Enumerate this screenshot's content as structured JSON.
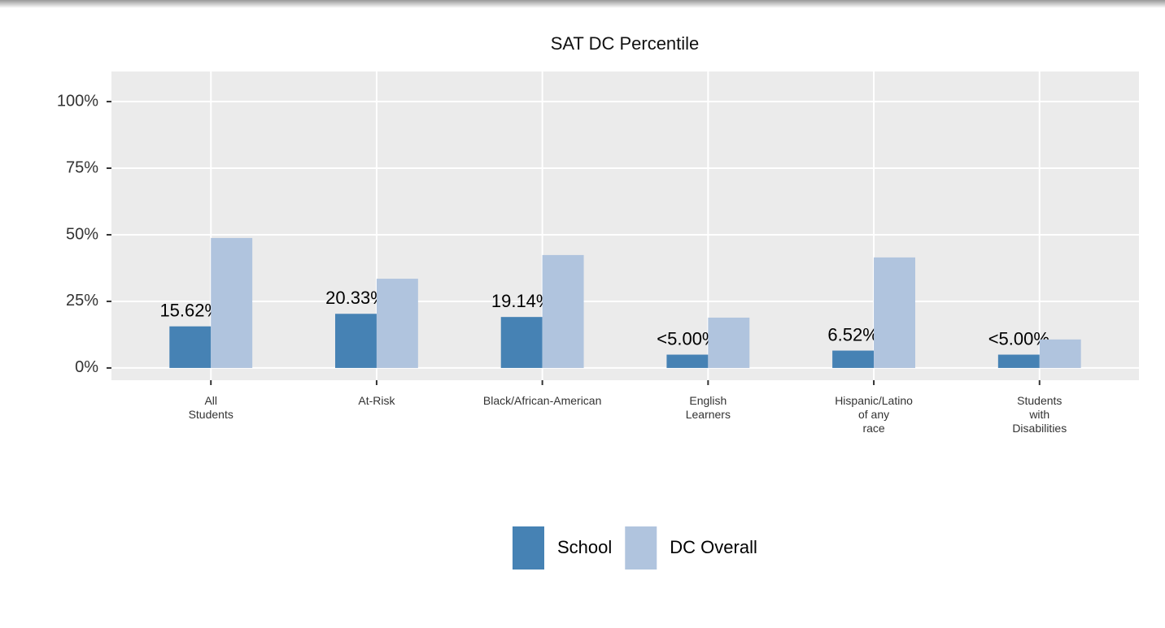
{
  "chart_data": {
    "type": "bar",
    "title": "SAT DC Percentile",
    "categories": [
      "All\nStudents",
      "At-Risk",
      "Black/African-American",
      "English\nLearners",
      "Hispanic/Latino\nof any\nrace",
      "Students\nwith\nDisabilities"
    ],
    "series": [
      {
        "name": "School",
        "color": "#4682b4",
        "values": [
          15.62,
          20.33,
          19.14,
          5,
          6.52,
          5
        ],
        "value_labels": [
          "15.62%",
          "20.33%",
          "19.14%",
          "<5.00%",
          "6.52%",
          "<5.00%"
        ]
      },
      {
        "name": "DC Overall",
        "color": "#b0c4de",
        "values": [
          48.8,
          33.5,
          42.4,
          18.9,
          41.5,
          10.7
        ]
      }
    ],
    "ylim": [
      -4.6,
      111.3
    ],
    "yticks": [
      {
        "value": 0,
        "label": "0%"
      },
      {
        "value": 25,
        "label": "25%"
      },
      {
        "value": 50,
        "label": "50%"
      },
      {
        "value": 75,
        "label": "75%"
      },
      {
        "value": 100,
        "label": "100%"
      }
    ],
    "grid": true,
    "legend": "bottom"
  }
}
